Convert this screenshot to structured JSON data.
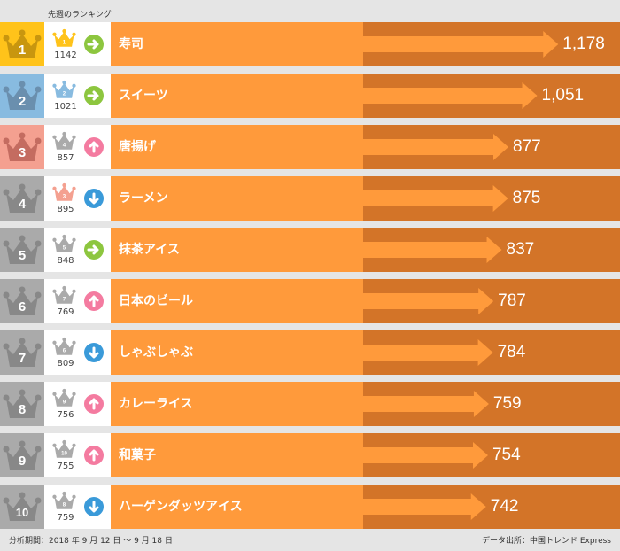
{
  "header": {
    "last_week_label": "先週のランキング"
  },
  "colors": {
    "bar": "#ff9a3b",
    "bar_dark": "#d37428",
    "same": "#8dc63f",
    "up": "#f47ba0",
    "down": "#3a9ad9"
  },
  "rank_colors": {
    "1": [
      "#ffc31a",
      "#c8960f"
    ],
    "2": [
      "#88bbe0",
      "#6a8fae"
    ],
    "3": [
      "#f4a090",
      "#c46c60"
    ],
    "other": [
      "#aaaaaa",
      "#888888"
    ]
  },
  "small_crown_colors": {
    "1": "#ffc31a",
    "2": "#88bbe0",
    "3": "#f4a090",
    "other": "#aaaaaa"
  },
  "rows": [
    {
      "rank": "1",
      "last_rank": "1",
      "last_value": "1142",
      "trend": "same",
      "name": "寿司",
      "value": 1178,
      "value_label": "1,178"
    },
    {
      "rank": "2",
      "last_rank": "2",
      "last_value": "1021",
      "trend": "same",
      "name": "スイーツ",
      "value": 1051,
      "value_label": "1,051"
    },
    {
      "rank": "3",
      "last_rank": "4",
      "last_value": "857",
      "trend": "up",
      "name": "唐揚げ",
      "value": 877,
      "value_label": "877"
    },
    {
      "rank": "4",
      "last_rank": "3",
      "last_value": "895",
      "trend": "down",
      "name": "ラーメン",
      "value": 875,
      "value_label": "875"
    },
    {
      "rank": "5",
      "last_rank": "5",
      "last_value": "848",
      "trend": "same",
      "name": "抹茶アイス",
      "value": 837,
      "value_label": "837"
    },
    {
      "rank": "6",
      "last_rank": "7",
      "last_value": "769",
      "trend": "up",
      "name": "日本のビール",
      "value": 787,
      "value_label": "787"
    },
    {
      "rank": "7",
      "last_rank": "6",
      "last_value": "809",
      "trend": "down",
      "name": "しゃぶしゃぶ",
      "value": 784,
      "value_label": "784"
    },
    {
      "rank": "8",
      "last_rank": "9",
      "last_value": "756",
      "trend": "up",
      "name": "カレーライス",
      "value": 759,
      "value_label": "759"
    },
    {
      "rank": "9",
      "last_rank": "10",
      "last_value": "755",
      "trend": "up",
      "name": "和菓子",
      "value": 754,
      "value_label": "754"
    },
    {
      "rank": "10",
      "last_rank": "8",
      "last_value": "759",
      "trend": "down",
      "name": "ハーゲンダッツアイス",
      "value": 742,
      "value_label": "742"
    }
  ],
  "footer": {
    "period": "分析期間：2018 年 9 月 12 日 ～ 9 月 18 日",
    "source": "データ出所：中国トレンド Express"
  }
}
